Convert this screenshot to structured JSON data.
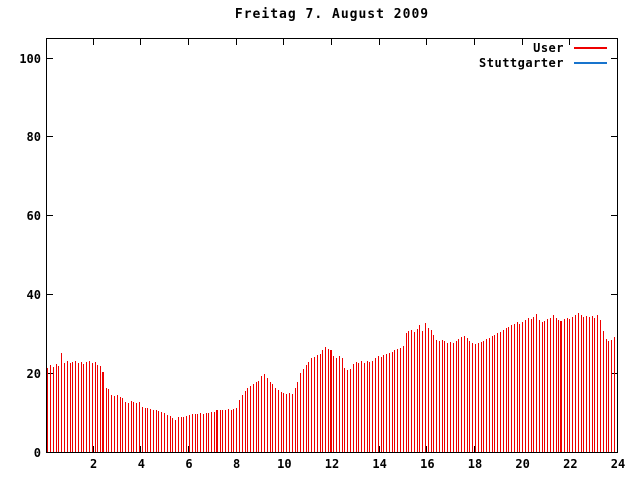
{
  "window": {
    "background": "#ffffff",
    "foreground": "#000000"
  },
  "chart_data": {
    "type": "bar",
    "style": "gnuplot impulses",
    "title": "Freitag 7. August 2009",
    "xlabel": "",
    "ylabel": "",
    "xlim": [
      0,
      24
    ],
    "ylim": [
      0,
      105
    ],
    "xticks": [
      2,
      4,
      6,
      8,
      10,
      12,
      14,
      16,
      18,
      20,
      22,
      24
    ],
    "yticks": [
      0,
      20,
      40,
      60,
      80,
      100
    ],
    "grid": false,
    "legend_position": "top-right-inside",
    "sampling": "206 impulse samples evenly spaced over 0-24 h (~7 min interval)",
    "series": [
      {
        "name": "User",
        "color": "#ee0000",
        "style": "impulses",
        "marker_indices": [
          20,
          61,
          102,
          185
        ],
        "values": [
          21.5,
          22.3,
          21.8,
          22.5,
          22.0,
          25.4,
          22.8,
          23.2,
          22.7,
          23.0,
          23.3,
          22.9,
          23.1,
          22.6,
          23.0,
          23.2,
          22.8,
          23.1,
          22.4,
          22.0,
          20.5,
          16.5,
          16.2,
          14.8,
          14.5,
          14.6,
          14.3,
          14.0,
          13.0,
          12.8,
          13.1,
          12.9,
          12.7,
          12.9,
          11.6,
          11.4,
          11.5,
          11.2,
          11.0,
          10.9,
          10.6,
          10.4,
          10.2,
          9.6,
          9.3,
          8.9,
          8.4,
          9.0,
          9.2,
          9.1,
          9.3,
          9.7,
          9.9,
          9.8,
          10.0,
          10.1,
          10.0,
          10.2,
          10.1,
          10.3,
          10.5,
          10.8,
          10.9,
          11.0,
          10.8,
          11.1,
          11.0,
          11.2,
          11.4,
          13.4,
          14.6,
          15.6,
          16.6,
          17.0,
          17.4,
          17.9,
          18.3,
          19.6,
          20.1,
          19.0,
          18.0,
          17.6,
          16.4,
          15.9,
          15.4,
          15.1,
          14.9,
          15.2,
          15.0,
          16.4,
          18.0,
          20.2,
          21.3,
          22.3,
          23.0,
          24.0,
          24.4,
          24.8,
          25.2,
          26.0,
          26.9,
          26.3,
          26.0,
          24.6,
          24.2,
          24.5,
          24.0,
          21.5,
          21.0,
          21.4,
          22.6,
          23.0,
          22.7,
          23.2,
          22.9,
          23.3,
          23.0,
          23.4,
          24.2,
          24.6,
          24.3,
          24.8,
          25.0,
          25.3,
          25.7,
          26.0,
          26.3,
          26.6,
          27.0,
          30.3,
          30.8,
          31.2,
          30.6,
          31.5,
          32.4,
          31.0,
          33.0,
          31.8,
          31.2,
          30.0,
          28.6,
          28.3,
          28.7,
          28.4,
          27.9,
          28.2,
          28.0,
          28.4,
          28.8,
          29.3,
          29.6,
          29.1,
          28.4,
          28.0,
          27.7,
          27.9,
          28.2,
          28.5,
          28.9,
          29.2,
          29.6,
          29.9,
          30.3,
          30.7,
          31.2,
          31.6,
          32.0,
          32.4,
          32.8,
          33.1,
          32.7,
          33.3,
          33.8,
          34.3,
          33.9,
          34.6,
          35.2,
          33.6,
          33.2,
          33.5,
          33.9,
          34.2,
          35.0,
          34.1,
          33.8,
          33.5,
          33.9,
          34.3,
          34.0,
          34.6,
          35.1,
          35.6,
          35.0,
          34.5,
          34.8,
          34.4,
          34.7,
          34.2,
          34.9,
          33.6,
          30.8,
          29.0,
          28.4,
          28.7,
          29.4,
          30.0
        ]
      },
      {
        "name": "Stuttgarter",
        "color": "#1874cd",
        "style": "line",
        "values": []
      }
    ]
  }
}
